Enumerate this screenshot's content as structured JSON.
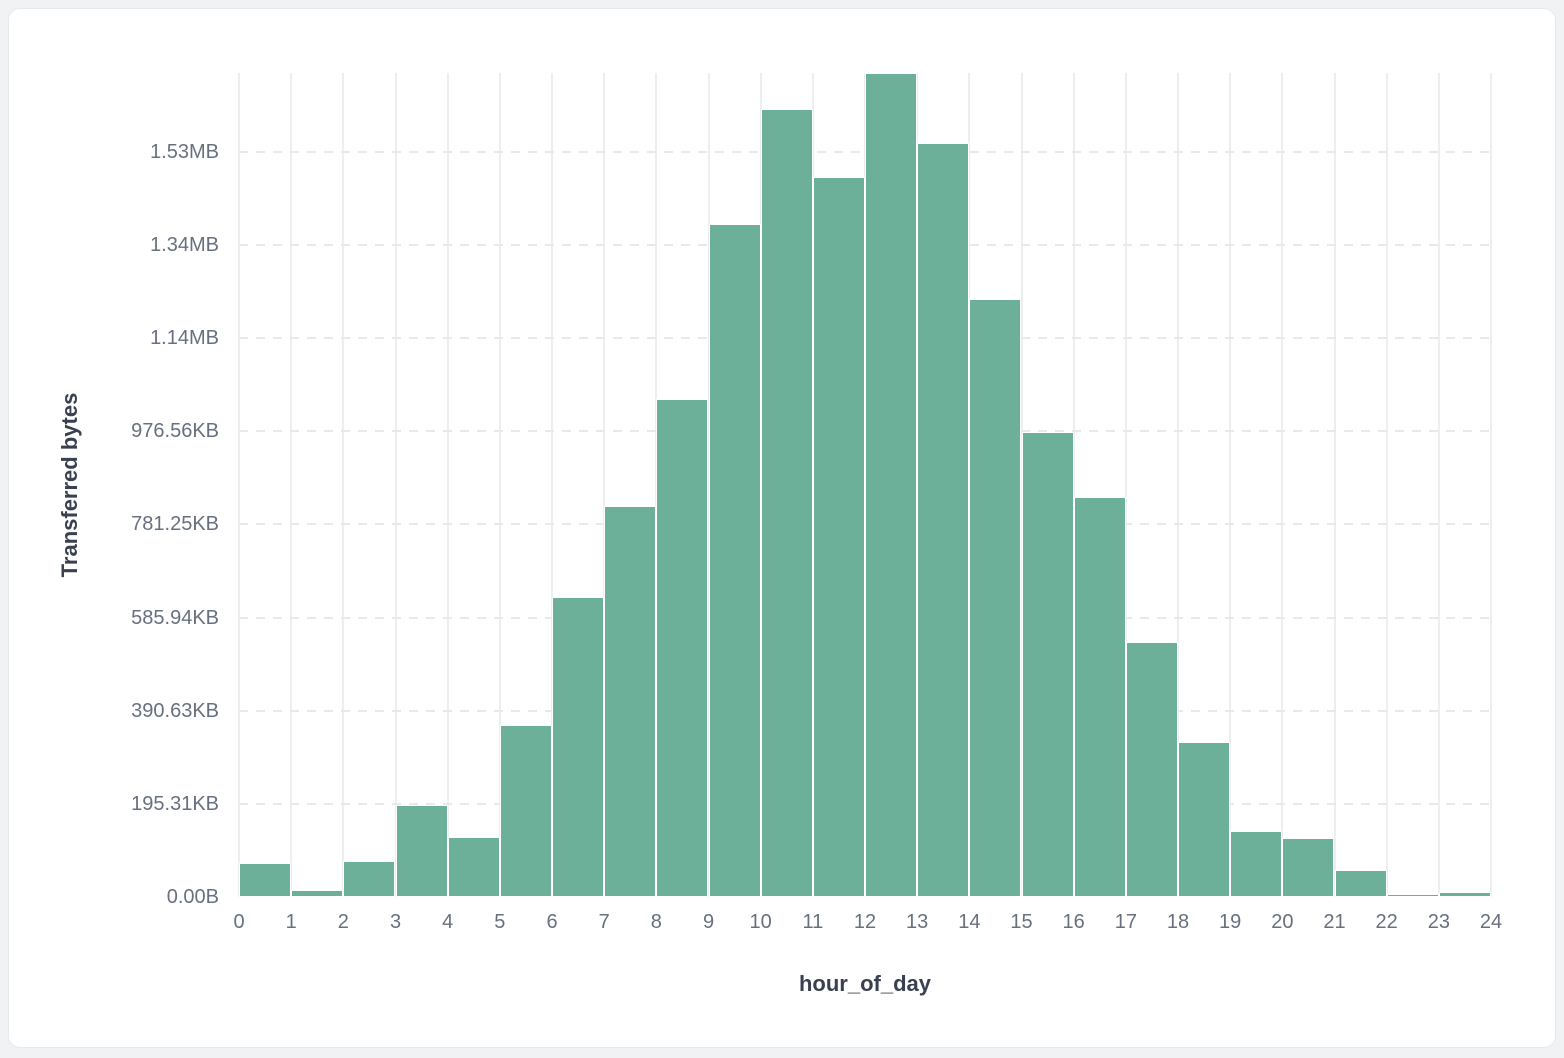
{
  "page": {
    "background": "#f1f2f4"
  },
  "card": {
    "background": "#ffffff",
    "border_color": "#e7e9ec"
  },
  "chart_data": {
    "type": "bar",
    "subtype": "histogram",
    "title": "",
    "xlabel": "hour_of_day",
    "ylabel": "Transferred bytes",
    "bin_width": 1,
    "categories": [
      0,
      1,
      2,
      3,
      4,
      5,
      6,
      7,
      8,
      9,
      10,
      11,
      12,
      13,
      14,
      15,
      16,
      17,
      18,
      19,
      20,
      21,
      22,
      23
    ],
    "values": [
      73000,
      15000,
      78000,
      197000,
      129000,
      370000,
      645000,
      840000,
      1070000,
      1444000,
      1692000,
      1546000,
      1769000,
      1618000,
      1283000,
      999000,
      858000,
      547000,
      333000,
      141000,
      126000,
      57000,
      6000,
      11000
    ],
    "values_unit": "bytes",
    "xlim": [
      0,
      24
    ],
    "ylim": [
      0,
      1769000
    ],
    "x_tick_labels": [
      "0",
      "1",
      "2",
      "3",
      "4",
      "5",
      "6",
      "7",
      "8",
      "9",
      "10",
      "11",
      "12",
      "13",
      "14",
      "15",
      "16",
      "17",
      "18",
      "19",
      "20",
      "21",
      "22",
      "23",
      "24"
    ],
    "y_ticks": [
      {
        "value": 0,
        "label": "0.00B"
      },
      {
        "value": 200000,
        "label": "195.31KB"
      },
      {
        "value": 400000,
        "label": "390.63KB"
      },
      {
        "value": 600000,
        "label": "585.94KB"
      },
      {
        "value": 800000,
        "label": "781.25KB"
      },
      {
        "value": 1000000,
        "label": "976.56KB"
      },
      {
        "value": 1200000,
        "label": "1.14MB"
      },
      {
        "value": 1400000,
        "label": "1.34MB"
      },
      {
        "value": 1600000,
        "label": "1.53MB"
      }
    ],
    "grid": {
      "vertical": "solid",
      "horizontal": "dashed"
    },
    "legend": "none",
    "bar_color": "#6CB09A",
    "bar_border_color": "#ffffff",
    "grid_color_vertical": "#eceef2",
    "grid_color_horizontal": "#e7e9ee",
    "tick_label_color": "#68707f",
    "axis_title_color": "#394150"
  }
}
